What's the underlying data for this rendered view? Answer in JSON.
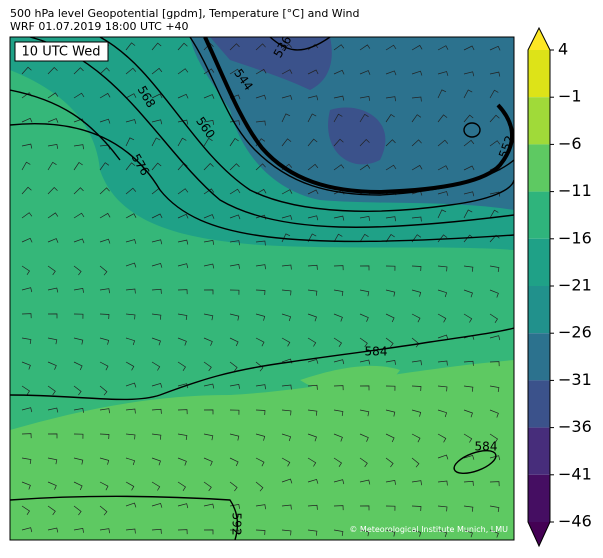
{
  "header": {
    "title": "500 hPa level Geopotential [gpdm], Temperature [°C] and Wind",
    "subtitle": "WRF 01.07.2019 18:00 UTC +40"
  },
  "map": {
    "time_label": "10 UTC Wed",
    "contour_labels": [
      "536",
      "544",
      "552",
      "560",
      "568",
      "576",
      "584",
      "584",
      "592"
    ],
    "credit": "© Meteorological Institute Munich, LMU"
  },
  "colorbar": {
    "range": [
      -46,
      4
    ],
    "ticks": [
      4,
      {
        "value": -1,
        "label": "−1"
      },
      {
        "value": -6,
        "label": "−6"
      },
      {
        "value": -11,
        "label": "−11"
      },
      {
        "value": -16,
        "label": "−16"
      },
      {
        "value": -21,
        "label": "−21"
      },
      {
        "value": -26,
        "label": "−26"
      },
      {
        "value": -31,
        "label": "−31"
      },
      {
        "value": -36,
        "label": "−36"
      },
      {
        "value": -41,
        "label": "−41"
      },
      {
        "value": -46,
        "label": "−46"
      }
    ],
    "colors": [
      "#fde725",
      "#dde318",
      "#a0da39",
      "#5ec962",
      "#2fb47c",
      "#1fa187",
      "#21918c",
      "#2c728e",
      "#3b528b",
      "#472d7b",
      "#450e62",
      "#440154"
    ]
  }
}
